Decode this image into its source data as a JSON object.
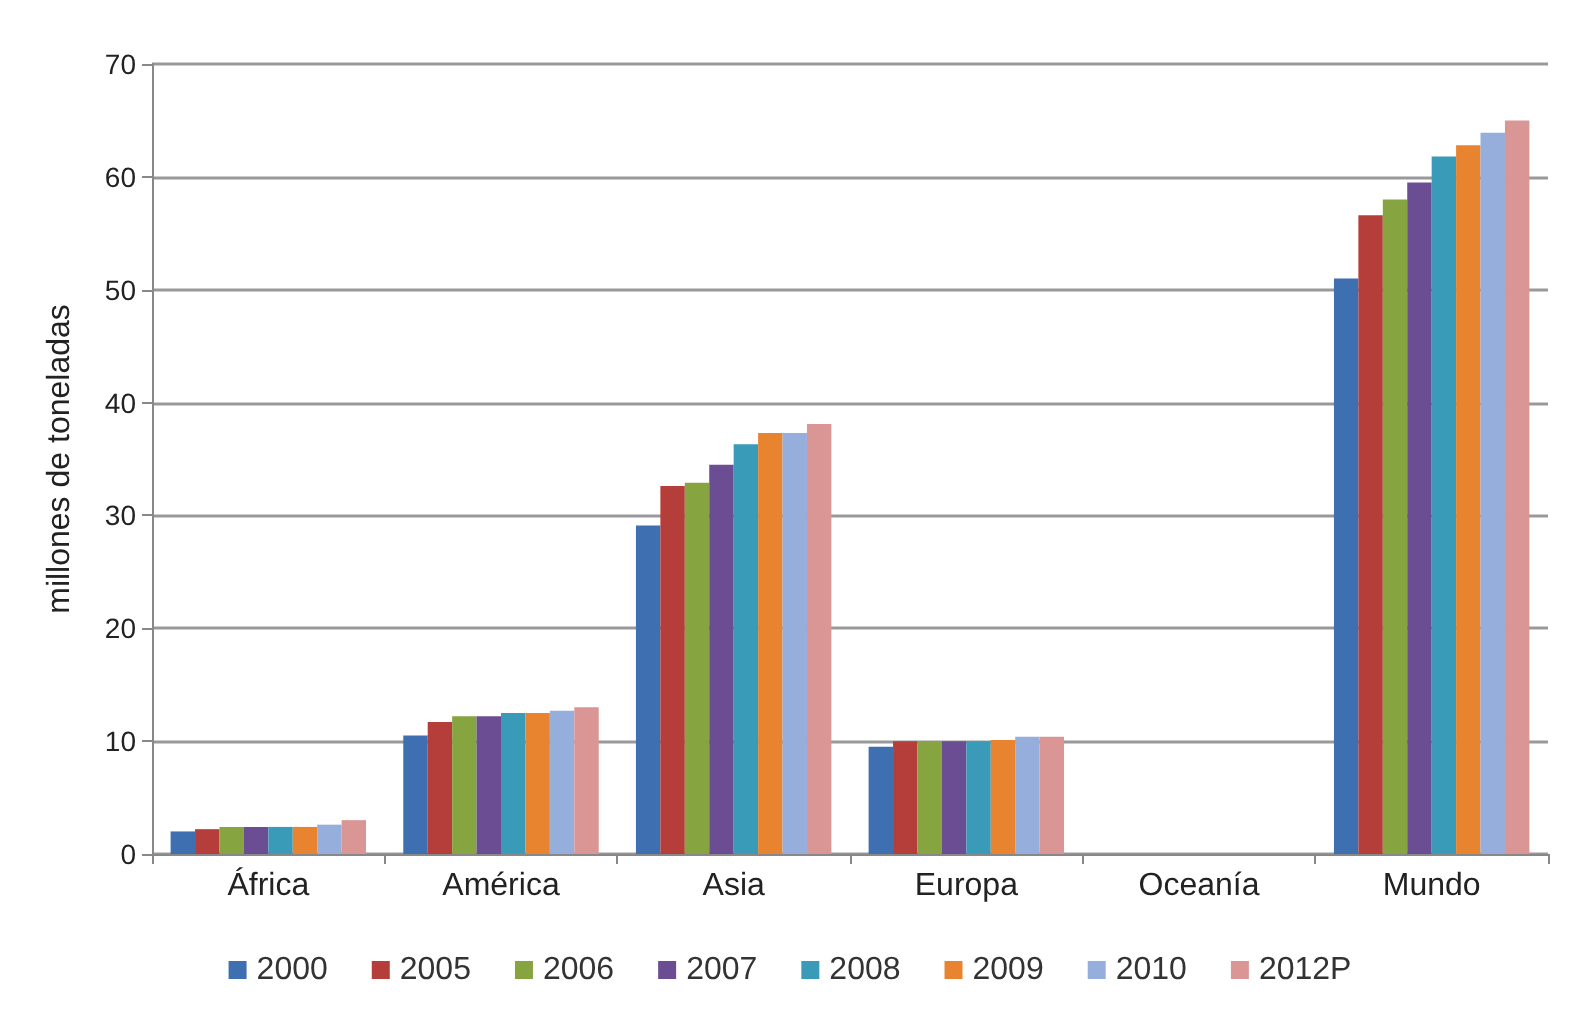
{
  "chart_data": {
    "type": "bar",
    "ylabel": "millones de toneladas",
    "categories": [
      "África",
      "América",
      "Asia",
      "Europa",
      "Oceanía",
      "Mundo"
    ],
    "series": [
      {
        "name": "2000",
        "color": "#3e6fb0",
        "values": [
          2.0,
          10.5,
          29.1,
          9.5,
          null,
          51.0
        ]
      },
      {
        "name": "2005",
        "color": "#b53d3a",
        "values": [
          2.2,
          11.7,
          32.6,
          10.0,
          null,
          56.6
        ]
      },
      {
        "name": "2006",
        "color": "#86a43f",
        "values": [
          2.4,
          12.2,
          32.9,
          10.0,
          null,
          58.0
        ]
      },
      {
        "name": "2007",
        "color": "#6b4d94",
        "values": [
          2.4,
          12.2,
          34.5,
          10.0,
          null,
          59.5
        ]
      },
      {
        "name": "2008",
        "color": "#3a9bb8",
        "values": [
          2.4,
          12.5,
          36.3,
          10.0,
          null,
          61.8
        ]
      },
      {
        "name": "2009",
        "color": "#e8832f",
        "values": [
          2.4,
          12.5,
          37.3,
          10.1,
          null,
          62.8
        ]
      },
      {
        "name": "2010",
        "color": "#95aedb",
        "values": [
          2.6,
          12.7,
          37.3,
          10.4,
          null,
          63.9
        ]
      },
      {
        "name": "2012P",
        "color": "#d99694",
        "values": [
          3.0,
          13.0,
          38.1,
          10.4,
          null,
          65.0
        ]
      }
    ],
    "ylim": [
      0,
      70
    ],
    "yticks": [
      0,
      10,
      20,
      30,
      40,
      50,
      60,
      70
    ],
    "grid": "y",
    "legend": "bottom"
  }
}
